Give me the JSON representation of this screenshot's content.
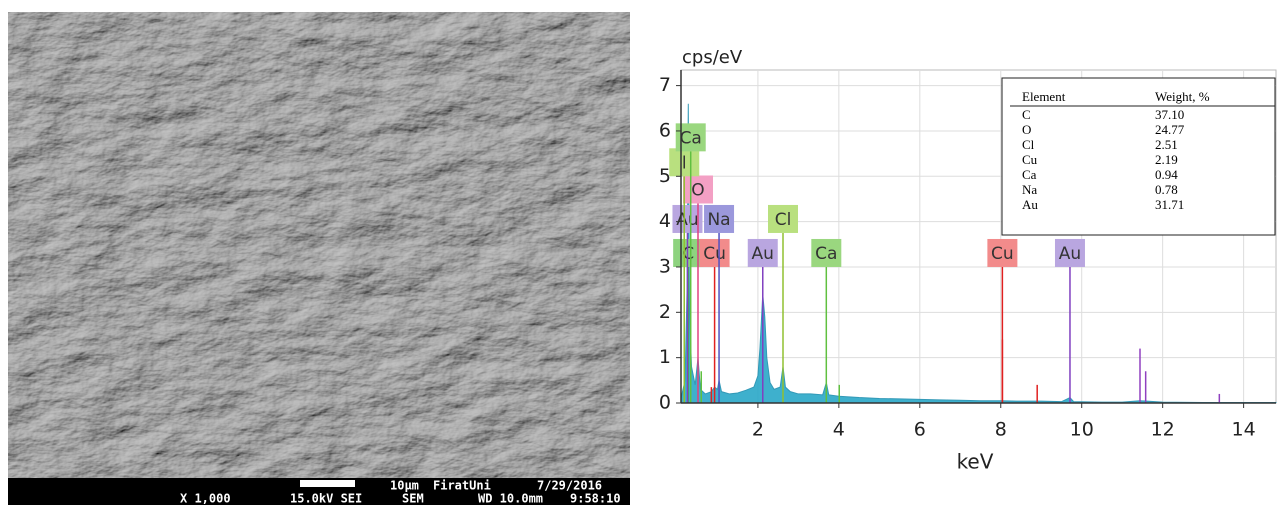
{
  "image_caption": {
    "scale": "10µm",
    "lab": "FiratUni",
    "date": "7/29/2016",
    "magnification": "X 1,000",
    "voltage": "15.0kV SEI",
    "mode": "SEM",
    "wd": "WD 10.0mm",
    "time": "9:58:10"
  },
  "chart_data": {
    "type": "area",
    "ylabel": "cps/eV",
    "xlabel": "keV",
    "color": "#2aa8c8",
    "x": [
      0.1,
      0.2,
      0.25,
      0.28,
      0.31,
      0.36,
      0.45,
      0.52,
      0.58,
      0.7,
      0.85,
      0.93,
      1.0,
      1.04,
      1.1,
      1.3,
      1.5,
      1.7,
      1.9,
      2.0,
      2.05,
      2.12,
      2.17,
      2.22,
      2.3,
      2.4,
      2.55,
      2.62,
      2.68,
      2.8,
      3.0,
      3.3,
      3.6,
      3.69,
      3.75,
      4.0,
      4.5,
      5.0,
      5.5,
      6.0,
      6.5,
      7.0,
      7.5,
      8.0,
      8.5,
      9.0,
      9.5,
      9.71,
      9.8,
      10.5,
      11.0,
      11.44,
      12.0,
      13.0,
      14.0,
      14.8
    ],
    "values": [
      0.1,
      0.5,
      2.5,
      6.6,
      2.0,
      0.8,
      0.4,
      1.0,
      0.3,
      0.2,
      0.25,
      0.35,
      0.3,
      0.5,
      0.25,
      0.2,
      0.22,
      0.28,
      0.35,
      0.6,
      1.2,
      2.4,
      1.9,
      1.0,
      0.45,
      0.3,
      0.35,
      0.8,
      0.35,
      0.25,
      0.2,
      0.2,
      0.18,
      0.45,
      0.18,
      0.15,
      0.12,
      0.1,
      0.09,
      0.08,
      0.07,
      0.06,
      0.05,
      0.05,
      0.04,
      0.04,
      0.03,
      0.12,
      0.03,
      0.02,
      0.02,
      0.05,
      0.02,
      0.01,
      0.01,
      0.01
    ],
    "xlim": [
      0.1,
      14.8
    ],
    "ylim": [
      0,
      7.3
    ],
    "xticks": [
      2,
      4,
      6,
      8,
      10,
      12,
      14
    ],
    "yticks": [
      0,
      1,
      2,
      3,
      4,
      5,
      6,
      7
    ],
    "grid": true,
    "peaks": [
      {
        "x": 8.04,
        "y": 1.4,
        "color": "#e02020"
      },
      {
        "x": 8.9,
        "y": 0.4,
        "color": "#e02020"
      },
      {
        "x": 11.44,
        "y": 1.2,
        "color": "#9040c0"
      },
      {
        "x": 11.58,
        "y": 0.7,
        "color": "#9040c0"
      },
      {
        "x": 13.4,
        "y": 0.2,
        "color": "#9040c0"
      },
      {
        "x": 0.6,
        "y": 0.7,
        "color": "#60c040"
      },
      {
        "x": 0.85,
        "y": 0.35,
        "color": "#e02020"
      },
      {
        "x": 4.01,
        "y": 0.4,
        "color": "#60c040"
      }
    ],
    "markers": [
      {
        "label": "C",
        "x": 0.277,
        "y": 3.0,
        "color": "#8ed37f",
        "line": "#40b040"
      },
      {
        "label": "Cu",
        "x": 0.93,
        "y": 3.0,
        "color": "#f28b8b",
        "line": "#e02020"
      },
      {
        "label": "Au",
        "x": 2.12,
        "y": 3.0,
        "color": "#b9a6e0",
        "line": "#8040c0"
      },
      {
        "label": "Ca",
        "x": 3.69,
        "y": 3.0,
        "color": "#9ad77f",
        "line": "#60c040"
      },
      {
        "label": "Cu",
        "x": 8.04,
        "y": 3.0,
        "color": "#f28b8b",
        "line": "#e02020"
      },
      {
        "label": "Au",
        "x": 9.71,
        "y": 3.0,
        "color": "#b9a6e0",
        "line": "#8040c0"
      },
      {
        "label": "Au",
        "x": 0.26,
        "y": 3.75,
        "color": "#b9a6e0",
        "line": "#8040c0"
      },
      {
        "label": "Na",
        "x": 1.04,
        "y": 3.75,
        "color": "#9b98dc",
        "line": "#5050c0"
      },
      {
        "label": "Cl",
        "x": 2.62,
        "y": 3.75,
        "color": "#b9e07f",
        "line": "#90c030"
      },
      {
        "label": "O",
        "x": 0.52,
        "y": 4.4,
        "color": "#f3a0c4",
        "line": "#e04080"
      },
      {
        "label": "l",
        "x": 0.18,
        "y": 5.0,
        "color": "#b9e07f",
        "line": "#90c030"
      },
      {
        "label": "Ca",
        "x": 0.34,
        "y": 5.55,
        "color": "#9ad77f",
        "line": "#60c040"
      }
    ],
    "table": {
      "columns": [
        "Element",
        "Weight, %"
      ],
      "rows": [
        [
          "C",
          "37.10"
        ],
        [
          "O",
          "24.77"
        ],
        [
          "Cl",
          "2.51"
        ],
        [
          "Cu",
          "2.19"
        ],
        [
          "Ca",
          "0.94"
        ],
        [
          "Na",
          "0.78"
        ],
        [
          "Au",
          "31.71"
        ]
      ]
    }
  }
}
